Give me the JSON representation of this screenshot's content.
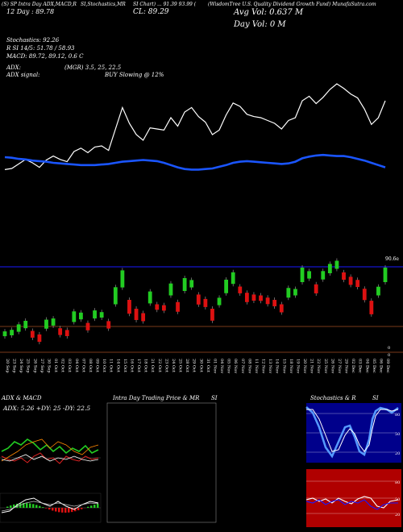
{
  "header": {
    "line1_left": "(S) SP Intra Day ADX,MACD,R",
    "line1_mid": "SI,Stochastics,MR",
    "line1_mid2": "SI Chart) ... 91.39 93.99 (",
    "line1_right": "(WisdomTree U.S. Quality Dividend Growth Fund) MunafaSutra.com",
    "price_left": "12 Day : 89.78",
    "price_mid": "CL: 89.29",
    "avg_vol": "Avg Vol: 0.637 M",
    "day_vol": "Day Vol: 0 M"
  },
  "indicators": {
    "stochastics": "Stochastics: 92.26",
    "rsi": "R        SI 14/5: 51.78 / 58.93",
    "macd": "MACD: 89.72, 89.12, 0.6  C",
    "adx": "ADX:",
    "adx_val": "(MGR) 3.5, 25, 22.5",
    "adx_signal": "ADX signal:",
    "buy_signal": "BUY Slowing @ 12%"
  },
  "main": {
    "price_label": "90.6e",
    "side_labels": [
      "0",
      "0"
    ]
  },
  "xaxis": {
    "dates": [
      "20 Sep",
      "23 Sep",
      "24 Sep",
      "25 Sep",
      "26 Sep",
      "27 Sep",
      "30 Sep",
      "01 Oct",
      "02 Oct",
      "03 Oct",
      "04 Oct",
      "07 Oct",
      "08 Oct",
      "09 Oct",
      "10 Oct",
      "11 Oct",
      "14 Oct",
      "15 Oct",
      "16 Oct",
      "17 Oct",
      "18 Oct",
      "21 Oct",
      "22 Oct",
      "23 Oct",
      "24 Oct",
      "25 Oct",
      "28 Oct",
      "29 Oct",
      "30 Oct",
      "31 Oct",
      "01 Nov",
      "04 Nov",
      "05 Nov",
      "06 Nov",
      "07 Nov",
      "08 Nov",
      "11 Nov",
      "12 Nov",
      "13 Nov",
      "14 Nov",
      "15 Nov",
      "18 Nov",
      "19 Nov",
      "20 Nov",
      "21 Nov",
      "22 Nov",
      "25 Nov",
      "26 Nov",
      "27 Nov",
      "29 Nov",
      "02 Dec",
      "03 Dec",
      "04 Dec",
      "05 Dec",
      "06 Dec",
      "09 Dec"
    ]
  },
  "panels": {
    "adx_title": "ADX  & MACD",
    "adx_values": "ADX: 5.26  +DY: 25  -DY: 22.5",
    "intraday_title": "Intra  Day Trading Price  & MR",
    "intraday_si": "SI",
    "stoch_title": "Stochastics & R",
    "stoch_si": "SI",
    "stoch_levels": [
      "80",
      "50",
      "20"
    ],
    "rsi_levels": [
      "80",
      "50",
      "20"
    ]
  },
  "colors": {
    "up": "#22cc22",
    "down": "#dd1111",
    "ma": "#1a55ff",
    "grid": "#7a3a1a",
    "blueline": "#1a1aff"
  },
  "chart_data": {
    "type": "candlestick",
    "price_line": [
      78,
      80,
      88,
      96,
      90,
      82,
      95,
      102,
      96,
      92,
      110,
      116,
      108,
      118,
      120,
      112,
      150,
      188,
      160,
      140,
      130,
      152,
      150,
      148,
      170,
      155,
      180,
      188,
      172,
      162,
      140,
      148,
      175,
      196,
      190,
      176,
      172,
      170,
      165,
      160,
      150,
      165,
      170,
      200,
      208,
      195,
      206,
      220,
      230,
      222,
      212,
      205,
      185,
      158,
      170,
      200
    ],
    "moving_average": [
      200,
      199,
      197,
      196,
      194,
      193,
      192,
      190,
      189,
      188,
      187,
      186,
      186,
      186,
      187,
      188,
      190,
      192,
      193,
      194,
      195,
      194,
      193,
      190,
      186,
      182,
      179,
      178,
      178,
      179,
      180,
      183,
      186,
      190,
      192,
      193,
      192,
      191,
      190,
      189,
      188,
      189,
      192,
      198,
      201,
      203,
      204,
      203,
      202,
      202,
      200,
      197,
      194,
      190,
      186,
      182
    ]
  }
}
